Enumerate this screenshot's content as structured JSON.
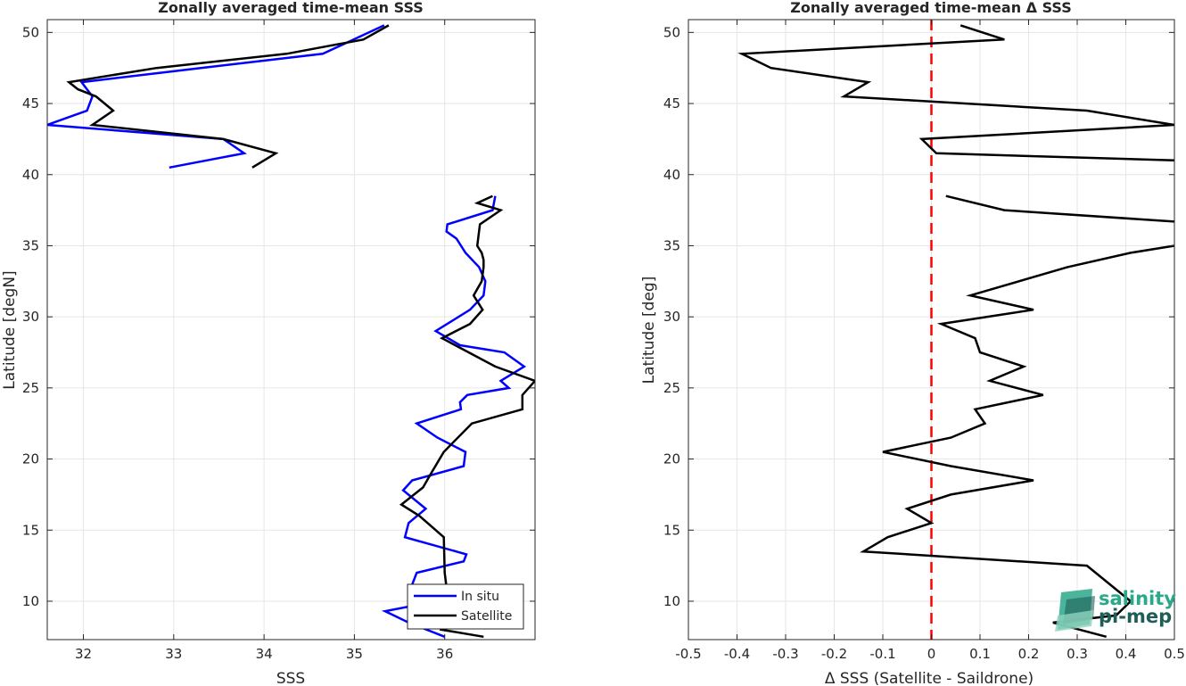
{
  "chart_data": [
    {
      "type": "line",
      "title": "Zonally averaged time-mean SSS",
      "xlabel": "SSS",
      "ylabel": "Latitude [degN]",
      "xlim": [
        31.6,
        37.0
      ],
      "ylim": [
        7.3,
        50.9
      ],
      "xticks": [
        32,
        33,
        34,
        35,
        36
      ],
      "yticks": [
        10,
        15,
        20,
        25,
        30,
        35,
        40,
        45,
        50
      ],
      "grid": true,
      "legend": "bottom-right",
      "series": [
        {
          "name": "In situ",
          "color": "#0000ff",
          "segments": [
            {
              "x": [
                32.95,
                33.78,
                33.55,
                31.6,
                32.04,
                32.1,
                31.98,
                33.3,
                34.65,
                35.33
              ],
              "y": [
                40.5,
                41.5,
                42.5,
                43.5,
                44.5,
                45.5,
                46.5,
                47.5,
                48.5,
                50.5
              ]
            },
            {
              "x": [
                36.0,
                35.6,
                35.34,
                35.75,
                35.63,
                35.69,
                36.21,
                36.24,
                35.56,
                35.6,
                35.79,
                35.54,
                35.64,
                36.21,
                36.23,
                35.92,
                35.69,
                36.18,
                36.17,
                36.25,
                36.71,
                36.62,
                36.88,
                36.66,
                36.17,
                35.9,
                36.28,
                36.43,
                36.45,
                36.38,
                36.23,
                36.13,
                36.02,
                36.03,
                36.53,
                36.56
              ],
              "y": [
                7.5,
                8.5,
                9.3,
                9.8,
                11.0,
                12.0,
                12.8,
                13.3,
                14.5,
                15.5,
                16.5,
                17.8,
                18.5,
                19.5,
                20.5,
                21.5,
                22.5,
                23.5,
                24.0,
                24.5,
                25.0,
                25.5,
                26.5,
                27.5,
                28.0,
                29.0,
                30.5,
                31.5,
                32.5,
                33.5,
                34.5,
                35.5,
                36.0,
                36.5,
                37.5,
                38.5
              ]
            }
          ]
        },
        {
          "name": "Satellite",
          "color": "#000000",
          "segments": [
            {
              "x": [
                33.87,
                34.13,
                33.55,
                32.1,
                32.33,
                32.14,
                31.94,
                31.84,
                32.81,
                34.25,
                35.1,
                35.38
              ],
              "y": [
                40.5,
                41.5,
                42.5,
                43.5,
                44.5,
                45.5,
                46.0,
                46.5,
                47.5,
                48.5,
                49.5,
                50.5
              ]
            },
            {
              "x": [
                36.43,
                35.96,
                36.05,
                35.99,
                36.02,
                36.0,
                35.99,
                35.72,
                35.52,
                35.76,
                35.85,
                35.99,
                36.3,
                36.86,
                36.86,
                37.0,
                36.56,
                35.97,
                36.28,
                36.42,
                36.32,
                36.41,
                36.43,
                36.43,
                36.41,
                36.36,
                36.37,
                36.39,
                36.62,
                36.36,
                36.53
              ],
              "y": [
                7.5,
                8.0,
                9.0,
                10.0,
                11.0,
                12.0,
                14.5,
                16.0,
                16.8,
                18.0,
                19.0,
                20.5,
                22.5,
                23.5,
                24.5,
                25.5,
                26.5,
                28.5,
                29.5,
                30.5,
                31.5,
                32.5,
                33.5,
                34.0,
                34.5,
                35.0,
                35.5,
                36.5,
                37.5,
                38.0,
                38.5
              ]
            }
          ]
        }
      ]
    },
    {
      "type": "line",
      "title": "Zonally averaged time-mean Δ SSS",
      "xlabel": "Δ SSS (Satellite - Saildrone)",
      "ylabel": "Latitude [deg]",
      "xlim": [
        -0.5,
        0.5
      ],
      "ylim": [
        7.3,
        50.9
      ],
      "xticks": [
        -0.5,
        -0.4,
        -0.3,
        -0.2,
        -0.1,
        0,
        0.1,
        0.2,
        0.3,
        0.4,
        0.5
      ],
      "yticks": [
        10,
        15,
        20,
        25,
        30,
        35,
        40,
        45,
        50
      ],
      "grid": true,
      "reference_line": {
        "x": 0,
        "color": "#ff0000",
        "style": "dashed"
      },
      "series": [
        {
          "name": "",
          "color": "#000000",
          "segments": [
            {
              "x": [
                0.5,
                0.01,
                -0.02,
                0.5,
                0.32,
                -0.18,
                -0.13,
                -0.33,
                -0.39,
                0.15,
                0.06
              ],
              "y": [
                41.0,
                41.5,
                42.5,
                43.5,
                44.5,
                45.5,
                46.5,
                47.5,
                48.5,
                49.5,
                50.5
              ]
            },
            {
              "x": [
                0.36,
                0.25,
                0.38,
                0.41,
                0.32,
                -0.14,
                -0.09,
                0.0,
                -0.05,
                0.04,
                0.21,
                0.04,
                -0.1,
                0.04,
                0.11,
                0.09,
                0.23,
                0.12,
                0.19,
                0.1,
                0.09,
                0.02,
                0.21,
                0.08,
                0.28,
                0.41,
                0.5
              ],
              "y": [
                7.5,
                8.5,
                9.0,
                10.0,
                12.5,
                13.5,
                14.5,
                15.5,
                16.5,
                17.5,
                18.5,
                19.5,
                20.5,
                21.5,
                22.5,
                23.5,
                24.5,
                25.5,
                26.5,
                27.5,
                28.5,
                29.5,
                30.5,
                31.5,
                33.5,
                34.5,
                35.0
              ]
            },
            {
              "x": [
                0.5,
                0.15,
                0.03
              ],
              "y": [
                36.7,
                37.5,
                38.5
              ]
            }
          ]
        }
      ]
    }
  ],
  "logo": {
    "line1": "salinity",
    "line2": "pi-mep",
    "color1": "#2aa88a",
    "color2": "#1f5e58"
  }
}
